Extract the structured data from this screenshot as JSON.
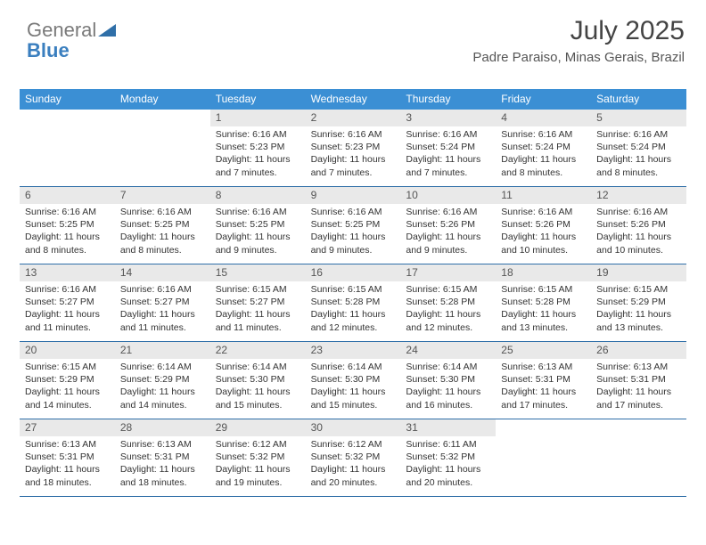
{
  "brand": {
    "line1": "General",
    "line2": "Blue",
    "tri_color": "#2f6fa8"
  },
  "title": "July 2025",
  "location": "Padre Paraiso, Minas Gerais, Brazil",
  "style": {
    "type": "table",
    "header_bg": "#3b8fd4",
    "header_fg": "#ffffff",
    "daynum_bg": "#e9e9e9",
    "row_border": "#2f6fa8",
    "body_fontsize": 10.5,
    "header_fontsize": 12,
    "title_fontsize": 30,
    "location_fontsize": 15
  },
  "dow": [
    "Sunday",
    "Monday",
    "Tuesday",
    "Wednesday",
    "Thursday",
    "Friday",
    "Saturday"
  ],
  "weeks": [
    [
      {
        "empty": true
      },
      {
        "empty": true
      },
      {
        "n": "1",
        "sr": "Sunrise: 6:16 AM",
        "ss": "Sunset: 5:23 PM",
        "dl": "Daylight: 11 hours and 7 minutes."
      },
      {
        "n": "2",
        "sr": "Sunrise: 6:16 AM",
        "ss": "Sunset: 5:23 PM",
        "dl": "Daylight: 11 hours and 7 minutes."
      },
      {
        "n": "3",
        "sr": "Sunrise: 6:16 AM",
        "ss": "Sunset: 5:24 PM",
        "dl": "Daylight: 11 hours and 7 minutes."
      },
      {
        "n": "4",
        "sr": "Sunrise: 6:16 AM",
        "ss": "Sunset: 5:24 PM",
        "dl": "Daylight: 11 hours and 8 minutes."
      },
      {
        "n": "5",
        "sr": "Sunrise: 6:16 AM",
        "ss": "Sunset: 5:24 PM",
        "dl": "Daylight: 11 hours and 8 minutes."
      }
    ],
    [
      {
        "n": "6",
        "sr": "Sunrise: 6:16 AM",
        "ss": "Sunset: 5:25 PM",
        "dl": "Daylight: 11 hours and 8 minutes."
      },
      {
        "n": "7",
        "sr": "Sunrise: 6:16 AM",
        "ss": "Sunset: 5:25 PM",
        "dl": "Daylight: 11 hours and 8 minutes."
      },
      {
        "n": "8",
        "sr": "Sunrise: 6:16 AM",
        "ss": "Sunset: 5:25 PM",
        "dl": "Daylight: 11 hours and 9 minutes."
      },
      {
        "n": "9",
        "sr": "Sunrise: 6:16 AM",
        "ss": "Sunset: 5:25 PM",
        "dl": "Daylight: 11 hours and 9 minutes."
      },
      {
        "n": "10",
        "sr": "Sunrise: 6:16 AM",
        "ss": "Sunset: 5:26 PM",
        "dl": "Daylight: 11 hours and 9 minutes."
      },
      {
        "n": "11",
        "sr": "Sunrise: 6:16 AM",
        "ss": "Sunset: 5:26 PM",
        "dl": "Daylight: 11 hours and 10 minutes."
      },
      {
        "n": "12",
        "sr": "Sunrise: 6:16 AM",
        "ss": "Sunset: 5:26 PM",
        "dl": "Daylight: 11 hours and 10 minutes."
      }
    ],
    [
      {
        "n": "13",
        "sr": "Sunrise: 6:16 AM",
        "ss": "Sunset: 5:27 PM",
        "dl": "Daylight: 11 hours and 11 minutes."
      },
      {
        "n": "14",
        "sr": "Sunrise: 6:16 AM",
        "ss": "Sunset: 5:27 PM",
        "dl": "Daylight: 11 hours and 11 minutes."
      },
      {
        "n": "15",
        "sr": "Sunrise: 6:15 AM",
        "ss": "Sunset: 5:27 PM",
        "dl": "Daylight: 11 hours and 11 minutes."
      },
      {
        "n": "16",
        "sr": "Sunrise: 6:15 AM",
        "ss": "Sunset: 5:28 PM",
        "dl": "Daylight: 11 hours and 12 minutes."
      },
      {
        "n": "17",
        "sr": "Sunrise: 6:15 AM",
        "ss": "Sunset: 5:28 PM",
        "dl": "Daylight: 11 hours and 12 minutes."
      },
      {
        "n": "18",
        "sr": "Sunrise: 6:15 AM",
        "ss": "Sunset: 5:28 PM",
        "dl": "Daylight: 11 hours and 13 minutes."
      },
      {
        "n": "19",
        "sr": "Sunrise: 6:15 AM",
        "ss": "Sunset: 5:29 PM",
        "dl": "Daylight: 11 hours and 13 minutes."
      }
    ],
    [
      {
        "n": "20",
        "sr": "Sunrise: 6:15 AM",
        "ss": "Sunset: 5:29 PM",
        "dl": "Daylight: 11 hours and 14 minutes."
      },
      {
        "n": "21",
        "sr": "Sunrise: 6:14 AM",
        "ss": "Sunset: 5:29 PM",
        "dl": "Daylight: 11 hours and 14 minutes."
      },
      {
        "n": "22",
        "sr": "Sunrise: 6:14 AM",
        "ss": "Sunset: 5:30 PM",
        "dl": "Daylight: 11 hours and 15 minutes."
      },
      {
        "n": "23",
        "sr": "Sunrise: 6:14 AM",
        "ss": "Sunset: 5:30 PM",
        "dl": "Daylight: 11 hours and 15 minutes."
      },
      {
        "n": "24",
        "sr": "Sunrise: 6:14 AM",
        "ss": "Sunset: 5:30 PM",
        "dl": "Daylight: 11 hours and 16 minutes."
      },
      {
        "n": "25",
        "sr": "Sunrise: 6:13 AM",
        "ss": "Sunset: 5:31 PM",
        "dl": "Daylight: 11 hours and 17 minutes."
      },
      {
        "n": "26",
        "sr": "Sunrise: 6:13 AM",
        "ss": "Sunset: 5:31 PM",
        "dl": "Daylight: 11 hours and 17 minutes."
      }
    ],
    [
      {
        "n": "27",
        "sr": "Sunrise: 6:13 AM",
        "ss": "Sunset: 5:31 PM",
        "dl": "Daylight: 11 hours and 18 minutes."
      },
      {
        "n": "28",
        "sr": "Sunrise: 6:13 AM",
        "ss": "Sunset: 5:31 PM",
        "dl": "Daylight: 11 hours and 18 minutes."
      },
      {
        "n": "29",
        "sr": "Sunrise: 6:12 AM",
        "ss": "Sunset: 5:32 PM",
        "dl": "Daylight: 11 hours and 19 minutes."
      },
      {
        "n": "30",
        "sr": "Sunrise: 6:12 AM",
        "ss": "Sunset: 5:32 PM",
        "dl": "Daylight: 11 hours and 20 minutes."
      },
      {
        "n": "31",
        "sr": "Sunrise: 6:11 AM",
        "ss": "Sunset: 5:32 PM",
        "dl": "Daylight: 11 hours and 20 minutes."
      },
      {
        "empty": true
      },
      {
        "empty": true
      }
    ]
  ]
}
